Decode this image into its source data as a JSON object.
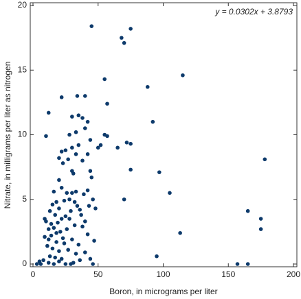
{
  "chart_data": {
    "type": "scatter",
    "xlabel": "Boron, in micrograms per liter",
    "ylabel": "Nitrate, in milligrams per liter as nitrogen",
    "annotation": "y = 0.0302x + 3.8793",
    "color": "#0d3a6b",
    "xlim": [
      0,
      200
    ],
    "ylim": [
      0,
      20
    ],
    "xticks": [
      0,
      50,
      100,
      150,
      200
    ],
    "yticks": [
      0,
      5,
      10,
      15,
      20
    ],
    "x": [
      45,
      68,
      70,
      75,
      115,
      88,
      55,
      92,
      57,
      12,
      22,
      34,
      40,
      65,
      72,
      75,
      97,
      75,
      105,
      70,
      113,
      95,
      178,
      175,
      175,
      165,
      157,
      165,
      10,
      46,
      30,
      35,
      38,
      42,
      40,
      33,
      28,
      22,
      25,
      30,
      35,
      44,
      52,
      55,
      57,
      50,
      20,
      27,
      33,
      38,
      42,
      23,
      30,
      31,
      45,
      44,
      20,
      16,
      22,
      26,
      30,
      33,
      39,
      42,
      46,
      43,
      48,
      36,
      32,
      28,
      24,
      18,
      15,
      13,
      20,
      17,
      25,
      28,
      22,
      19,
      14,
      10,
      9,
      12,
      16,
      21,
      26,
      32,
      38,
      42,
      47,
      35,
      30,
      24,
      18,
      12,
      9,
      11,
      15,
      20,
      27,
      33,
      40,
      22,
      17,
      13,
      8,
      5,
      3,
      6,
      12,
      16,
      25,
      29,
      31,
      20,
      36,
      44,
      14,
      18,
      23,
      29,
      34,
      37,
      40
    ],
    "values": [
      18.4,
      17.5,
      17.1,
      18.2,
      14.6,
      13.7,
      14.3,
      11.0,
      12.4,
      11.7,
      12.9,
      13.0,
      13.0,
      9.0,
      9.4,
      9.3,
      7.1,
      7.3,
      5.5,
      5.0,
      2.4,
      0.6,
      8.1,
      3.5,
      2.7,
      4.1,
      0.0,
      0.0,
      9.9,
      0.0,
      11.4,
      11.5,
      11.3,
      11.0,
      10.5,
      10.2,
      10.0,
      8.7,
      8.8,
      9.0,
      9.2,
      9.6,
      9.2,
      10.0,
      9.9,
      9.0,
      8.2,
      8.1,
      8.5,
      8.0,
      8.5,
      7.8,
      7.2,
      7.0,
      6.7,
      7.2,
      6.5,
      5.6,
      5.9,
      5.5,
      5.5,
      5.6,
      5.4,
      5.7,
      5.0,
      4.5,
      4.3,
      4.2,
      4.8,
      5.0,
      4.9,
      4.8,
      4.6,
      4.1,
      4.3,
      3.8,
      3.7,
      3.5,
      3.5,
      3.2,
      3.1,
      3.3,
      3.5,
      2.7,
      2.8,
      2.5,
      2.7,
      3.0,
      2.9,
      2.3,
      1.8,
      1.5,
      1.9,
      1.6,
      1.7,
      1.9,
      2.1,
      1.4,
      1.2,
      1.0,
      1.1,
      0.8,
      0.9,
      0.4,
      0.5,
      0.6,
      0.3,
      0.2,
      0.0,
      0.0,
      0.1,
      0.0,
      0.0,
      0.0,
      0.1,
      0.2,
      0.3,
      0.4,
      2.2,
      2.4,
      2.0,
      4.1,
      4.5,
      3.8,
      3.3
    ]
  }
}
